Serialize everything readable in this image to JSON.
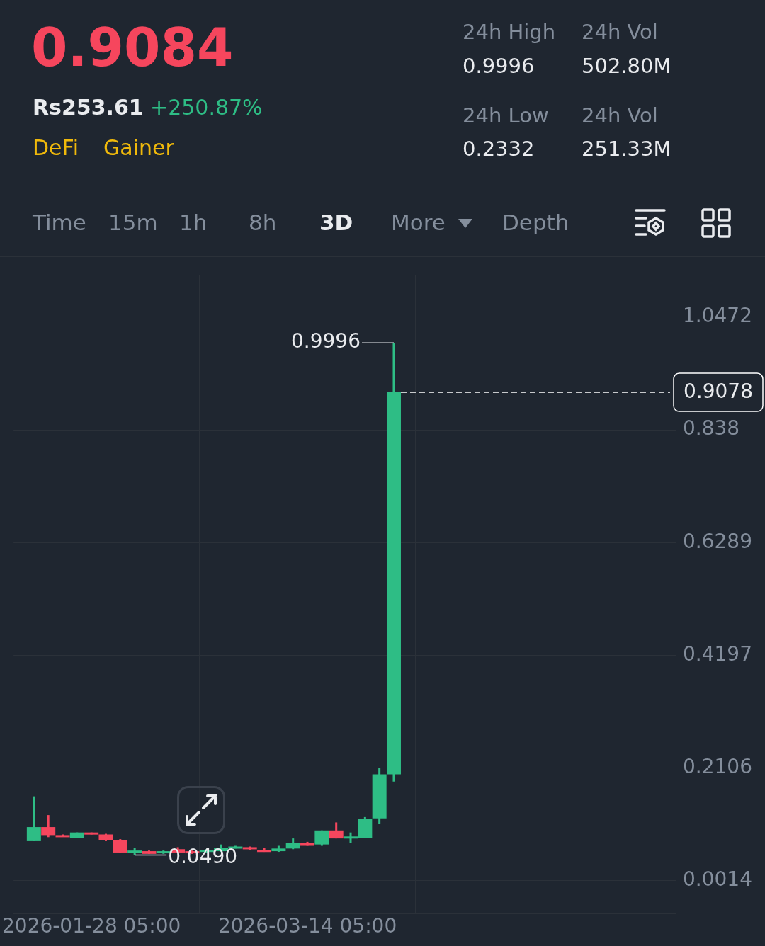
{
  "chart_data": {
    "type": "candlestick",
    "title": "0.9084",
    "annotations": [
      "Rs253.61",
      "+250.87%",
      "DeFi",
      "Gainer",
      "24h High",
      "0.9996",
      "24h Vol",
      "502.80M",
      "24h Low",
      "0.2332",
      "24h Vol",
      "251.33M",
      "Time",
      "15m",
      "1h",
      "8h",
      "3D",
      "More",
      "Depth",
      {
        "text": "0.9996",
        "x": "2026-04-01T05:00",
        "y": 0.9996
      },
      {
        "text": "0.0490",
        "x": "2026-02-06T05:00",
        "y": 0.049
      }
    ],
    "x": [
      "2026-01-16T05:00",
      "2026-01-19T05:00",
      "2026-01-22T05:00",
      "2026-01-25T05:00",
      "2026-01-28T05:00",
      "2026-01-31T05:00",
      "2026-02-03T05:00",
      "2026-02-06T05:00",
      "2026-02-09T05:00",
      "2026-02-12T05:00",
      "2026-02-15T05:00",
      "2026-02-18T05:00",
      "2026-02-21T05:00",
      "2026-02-24T05:00",
      "2026-02-27T05:00",
      "2026-03-02T05:00",
      "2026-03-05T05:00",
      "2026-03-08T05:00",
      "2026-03-11T05:00",
      "2026-03-14T05:00",
      "2026-03-17T05:00",
      "2026-03-20T05:00",
      "2026-03-23T05:00",
      "2026-03-26T05:00",
      "2026-03-29T05:00",
      "2026-04-01T05:00"
    ],
    "ohlc": [
      [
        0.0747,
        0.1579,
        0.0747,
        0.1008
      ],
      [
        0.1008,
        0.1231,
        0.0821,
        0.0859
      ],
      [
        0.0859,
        0.0871,
        0.0834,
        0.0834
      ],
      [
        0.0809,
        0.0908,
        0.0809,
        0.0908
      ],
      [
        0.0908,
        0.0908,
        0.0871,
        0.0871
      ],
      [
        0.0871,
        0.0883,
        0.0747,
        0.0759
      ],
      [
        0.0759,
        0.0784,
        0.0536,
        0.0536
      ],
      [
        0.0536,
        0.0623,
        0.049,
        0.0573
      ],
      [
        0.0561,
        0.0573,
        0.0511,
        0.0511
      ],
      [
        0.0523,
        0.0573,
        0.0511,
        0.0561
      ],
      [
        0.0598,
        0.0635,
        0.0536,
        0.0536
      ],
      [
        0.0561,
        0.0573,
        0.0511,
        0.0523
      ],
      [
        0.0548,
        0.0598,
        0.0536,
        0.0585
      ],
      [
        0.0561,
        0.0685,
        0.0548,
        0.0623
      ],
      [
        0.0623,
        0.066,
        0.061,
        0.0647
      ],
      [
        0.0635,
        0.0647,
        0.0585,
        0.0598
      ],
      [
        0.0585,
        0.0623,
        0.0548,
        0.0548
      ],
      [
        0.0561,
        0.066,
        0.0548,
        0.061
      ],
      [
        0.061,
        0.0797,
        0.0598,
        0.071
      ],
      [
        0.071,
        0.0734,
        0.066,
        0.066
      ],
      [
        0.0685,
        0.0946,
        0.066,
        0.0946
      ],
      [
        0.0946,
        0.1095,
        0.0797,
        0.0797
      ],
      [
        0.0797,
        0.0908,
        0.071,
        0.0834
      ],
      [
        0.0809,
        0.1194,
        0.0809,
        0.1157
      ],
      [
        0.1169,
        0.2113,
        0.107,
        0.1989
      ],
      [
        0.1989,
        0.9996,
        0.1852,
        0.9078
      ]
    ],
    "colors": [
      "#2ebd85",
      "#f6465d",
      "#f6465d",
      "#2ebd85",
      "#f6465d",
      "#f6465d",
      "#f6465d",
      "#2ebd85",
      "#f6465d",
      "#2ebd85",
      "#f6465d",
      "#f6465d",
      "#2ebd85",
      "#2ebd85",
      "#2ebd85",
      "#f6465d",
      "#f6465d",
      "#2ebd85",
      "#2ebd85",
      "#f6465d",
      "#2ebd85",
      "#f6465d",
      "#2ebd85",
      "#2ebd85",
      "#2ebd85",
      "#2ebd85"
    ],
    "xlim": [
      "2026-01-11T23:00",
      "2026-05-29T23:00"
    ],
    "xticks": [
      {
        "value": "2026-01-28T05:00",
        "label": "2026-01-28 05:00"
      },
      {
        "value": "2026-03-14T05:00",
        "label": "2026-03-14 05:00"
      }
    ],
    "ylim": [
      -0.06,
      1.125
    ],
    "yticks": [
      0.0014,
      0.2106,
      0.4197,
      0.6289,
      0.838,
      1.0472
    ],
    "grid": true,
    "ref_lines": [
      {
        "axis": "y",
        "value": 0.9078,
        "label": "0.9078",
        "color": "#ffffff",
        "line_style": "dashed"
      }
    ]
  }
}
